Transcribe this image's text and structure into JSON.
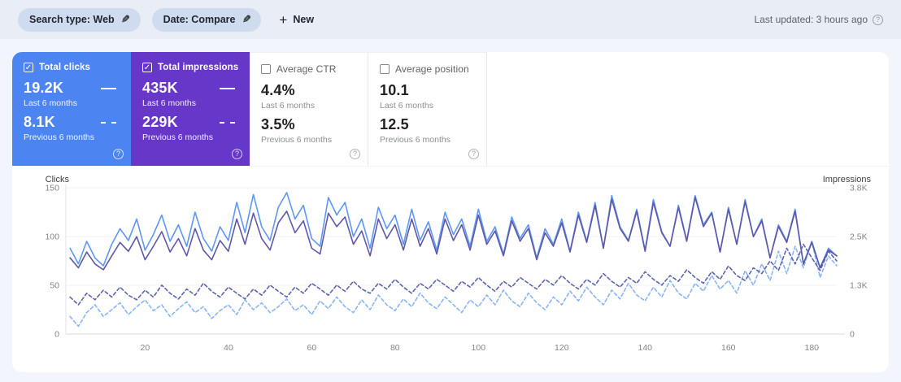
{
  "header": {
    "chips": [
      {
        "label": "Search type: Web"
      },
      {
        "label": "Date: Compare"
      }
    ],
    "new_label": "New",
    "last_updated": "Last updated: 3 hours ago"
  },
  "cards": [
    {
      "label": "Total clicks",
      "checked": true,
      "color": "#4c85f2",
      "value_current": "19.2K",
      "period_current": "Last 6 months",
      "value_previous": "8.1K",
      "period_previous": "Previous 6 months"
    },
    {
      "label": "Total impressions",
      "checked": true,
      "color": "#6637c8",
      "value_current": "435K",
      "period_current": "Last 6 months",
      "value_previous": "229K",
      "period_previous": "Previous 6 months"
    },
    {
      "label": "Average CTR",
      "checked": false,
      "color": "",
      "value_current": "4.4%",
      "period_current": "Last 6 months",
      "value_previous": "3.5%",
      "period_previous": "Previous 6 months"
    },
    {
      "label": "Average position",
      "checked": false,
      "color": "",
      "value_current": "10.1",
      "period_current": "Last 6 months",
      "value_previous": "12.5",
      "period_previous": "Previous 6 months"
    }
  ],
  "chart_data": {
    "type": "line",
    "left_axis": {
      "label": "Clicks",
      "max": 150,
      "ticks": [
        0,
        50,
        100,
        150
      ]
    },
    "right_axis": {
      "label": "Impressions",
      "max": 3800,
      "ticks": [
        {
          "label": "0",
          "value": 0
        },
        {
          "label": "1.3K",
          "value": 1267
        },
        {
          "label": "2.5K",
          "value": 2533
        },
        {
          "label": "3.8K",
          "value": 3800
        }
      ]
    },
    "x": {
      "min": 1,
      "max": 186,
      "start": 2,
      "step": 2,
      "ticks": [
        20,
        40,
        60,
        80,
        100,
        120,
        140,
        160,
        180
      ]
    },
    "series": [
      {
        "name": "Total clicks — Last 6 months",
        "axis": "left",
        "style": "solid",
        "color": "#5e97f6",
        "values": [
          88,
          72,
          95,
          78,
          70,
          92,
          108,
          96,
          118,
          86,
          102,
          122,
          95,
          112,
          90,
          125,
          98,
          85,
          110,
          96,
          135,
          104,
          143,
          110,
          96,
          130,
          145,
          118,
          132,
          98,
          90,
          140,
          122,
          135,
          100,
          118,
          88,
          130,
          108,
          122,
          92,
          128,
          96,
          115,
          86,
          125,
          102,
          118,
          90,
          128,
          95,
          110,
          82,
          120,
          98,
          112,
          78,
          108,
          92,
          118,
          85,
          125,
          95,
          135,
          88,
          142,
          110,
          96,
          128,
          86,
          138,
          105,
          90,
          132,
          96,
          142,
          112,
          125,
          84,
          130,
          92,
          138,
          100,
          118,
          78,
          112,
          95,
          128,
          72,
          95,
          68,
          88,
          80
        ]
      },
      {
        "name": "Total impressions — Last 6 months",
        "axis": "right",
        "style": "solid",
        "color": "#5f58a8",
        "values": [
          1980,
          1720,
          2130,
          1820,
          1670,
          2030,
          2380,
          2150,
          2530,
          1930,
          2280,
          2660,
          2130,
          2480,
          2030,
          2740,
          2180,
          1930,
          2430,
          2150,
          2990,
          2330,
          3140,
          2480,
          2180,
          2890,
          3190,
          2630,
          2940,
          2230,
          2080,
          3140,
          2790,
          3040,
          2330,
          2680,
          2030,
          2990,
          2480,
          2840,
          2180,
          2990,
          2280,
          2740,
          2080,
          2990,
          2430,
          2840,
          2180,
          3090,
          2330,
          2680,
          2030,
          2940,
          2410,
          2740,
          1930,
          2630,
          2280,
          2890,
          2130,
          3090,
          2380,
          3340,
          2230,
          3500,
          2740,
          2410,
          3190,
          2150,
          3420,
          2630,
          2280,
          3290,
          2410,
          3550,
          2790,
          3140,
          2130,
          3240,
          2330,
          3440,
          2530,
          2940,
          1980,
          2790,
          2380,
          3190,
          1820,
          2380,
          1720,
          2180,
          2030
        ]
      },
      {
        "name": "Total clicks — Previous 6 months",
        "axis": "left",
        "style": "dashed",
        "color": "#8ab4f8",
        "values": [
          18,
          8,
          22,
          30,
          18,
          25,
          32,
          20,
          28,
          35,
          24,
          30,
          18,
          26,
          33,
          22,
          28,
          16,
          24,
          30,
          20,
          35,
          25,
          32,
          22,
          28,
          36,
          24,
          30,
          20,
          34,
          26,
          38,
          28,
          22,
          35,
          25,
          40,
          30,
          24,
          36,
          28,
          42,
          32,
          26,
          38,
          30,
          22,
          35,
          28,
          40,
          30,
          45,
          34,
          28,
          42,
          32,
          25,
          38,
          30,
          44,
          34,
          48,
          38,
          30,
          45,
          36,
          52,
          40,
          34,
          48,
          38,
          55,
          42,
          36,
          52,
          44,
          60,
          46,
          55,
          42,
          65,
          50,
          72,
          55,
          85,
          62,
          90,
          68,
          95,
          58,
          80,
          70
        ]
      },
      {
        "name": "Total impressions — Previous 6 months",
        "axis": "right",
        "style": "dashed",
        "color": "#5c64ae",
        "values": [
          960,
          760,
          1060,
          890,
          1140,
          960,
          1220,
          1010,
          890,
          1140,
          960,
          1270,
          1060,
          910,
          1170,
          1010,
          1320,
          1110,
          960,
          1220,
          1060,
          910,
          1170,
          1010,
          1270,
          1110,
          960,
          1220,
          1060,
          1320,
          1170,
          1010,
          1270,
          1110,
          1370,
          1170,
          1060,
          1320,
          1170,
          1420,
          1220,
          1060,
          1320,
          1170,
          1420,
          1270,
          1110,
          1370,
          1220,
          1470,
          1270,
          1110,
          1370,
          1220,
          1470,
          1320,
          1170,
          1420,
          1270,
          1520,
          1320,
          1170,
          1420,
          1270,
          1570,
          1370,
          1220,
          1470,
          1320,
          1620,
          1420,
          1270,
          1520,
          1370,
          1670,
          1470,
          1320,
          1620,
          1420,
          1770,
          1520,
          1390,
          1720,
          1570,
          1900,
          1650,
          2230,
          1820,
          2330,
          1980,
          1650,
          2150,
          1900
        ]
      }
    ]
  }
}
